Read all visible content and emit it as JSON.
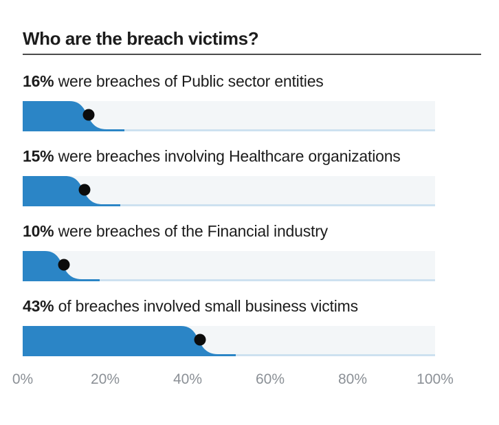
{
  "title": "Who are the breach victims?",
  "chart_data": {
    "type": "bar",
    "orientation": "horizontal",
    "title": "Who are the breach victims?",
    "xlim": [
      0,
      100
    ],
    "unit": "%",
    "x_ticks": [
      "0%",
      "20%",
      "40%",
      "60%",
      "80%",
      "100%"
    ],
    "grid": false,
    "legend": false,
    "items": [
      {
        "value": 16,
        "pct_label": "16%",
        "description": " were breaches of Public sector entities"
      },
      {
        "value": 15,
        "pct_label": "15%",
        "description": " were breaches involving Healthcare organizations"
      },
      {
        "value": 10,
        "pct_label": "10%",
        "description": " were breaches of the Financial industry"
      },
      {
        "value": 43,
        "pct_label": "43%",
        "description": " of breaches involved small business victims"
      }
    ],
    "colors": {
      "bar": "#2b85c6",
      "track": "#f3f6f8",
      "track_bottom_line": "#cde1f0",
      "marker_dot": "#0c0c0c",
      "text": "#1c1c1c",
      "axis_text": "#8b9096",
      "title_rule": "#4a4a4a",
      "background": "#ffffff"
    }
  }
}
